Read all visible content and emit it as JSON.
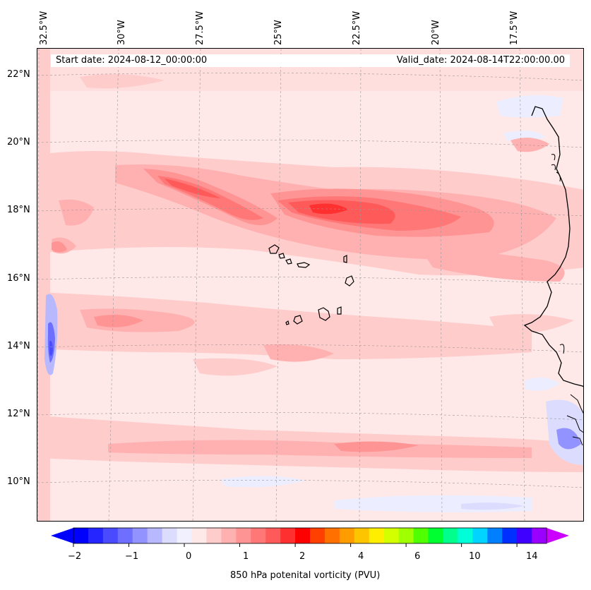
{
  "map": {
    "start_label": "Start date: 2024-08-12_00:00:00",
    "valid_label": "Valid_date: 2024-08-14T22:00:00.00",
    "longitude_labels": [
      "32.5°W",
      "30°W",
      "27.5°W",
      "25°W",
      "22.5°W",
      "20°W",
      "17.5°W"
    ],
    "latitude_labels": [
      "22°N",
      "20°N",
      "18°N",
      "16°N",
      "14°N",
      "12°N",
      "10°N"
    ],
    "features": [
      "cape-verde-islands",
      "west-africa-coastline",
      "pv-band-18N",
      "pv-band-14N",
      "pv-band-11N",
      "negative-pv-14N"
    ]
  },
  "colorbar": {
    "title": "850 hPa potenital vorticity (PVU)",
    "tick_labels": [
      "−2",
      "−1",
      "0",
      "1",
      "2",
      "4",
      "6",
      "10",
      "14"
    ],
    "tick_values": [
      -2,
      -1,
      0,
      1,
      2,
      4,
      6,
      10,
      14
    ],
    "colors": [
      "#0000ff",
      "#2525ff",
      "#4a4aff",
      "#6e6eff",
      "#9393ff",
      "#b8b8ff",
      "#dcdcff",
      "#f0f0ff",
      "#ffe8e8",
      "#ffcccc",
      "#ffb1b1",
      "#ff9494",
      "#ff7777",
      "#ff5a5a",
      "#ff3030",
      "#ff0000",
      "#ff4000",
      "#ff7000",
      "#ff9c00",
      "#ffc400",
      "#ffee00",
      "#d4ff00",
      "#a0ff00",
      "#50ff00",
      "#00ff30",
      "#00ff8c",
      "#00ffd8",
      "#00d4ff",
      "#0080ff",
      "#0030ff",
      "#4000ff",
      "#9900ff"
    ],
    "under_color": "#0000ff",
    "over_color": "#cc00ff"
  }
}
